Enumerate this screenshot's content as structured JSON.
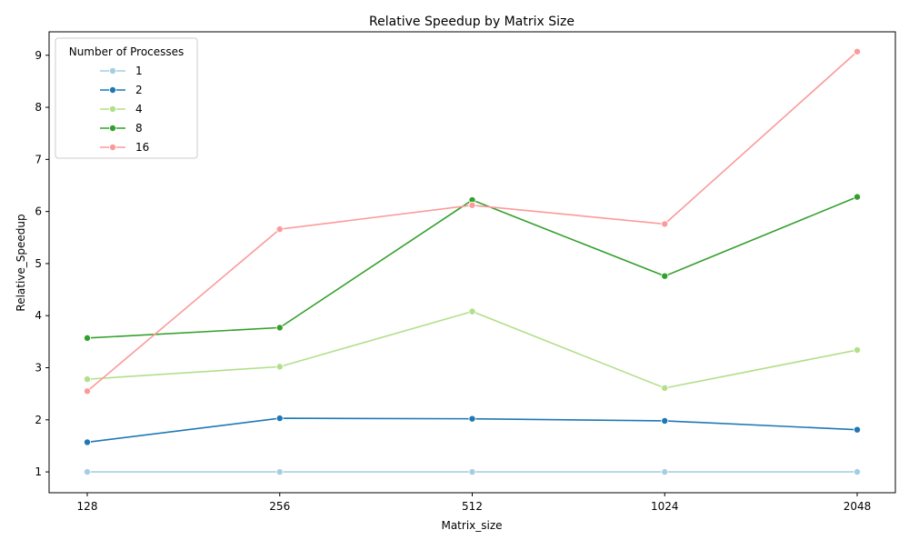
{
  "chart_data": {
    "type": "line",
    "title": "Relative Speedup by Matrix Size",
    "xlabel": "Matrix_size",
    "ylabel": "Relative_Speedup",
    "categories": [
      "128",
      "256",
      "512",
      "1024",
      "2048"
    ],
    "ylim": [
      0.6,
      9.45
    ],
    "yticks": [
      "1",
      "2",
      "3",
      "4",
      "5",
      "6",
      "7",
      "8",
      "9"
    ],
    "grid": false,
    "legend": {
      "title": "Number of Processes",
      "placement": "top-left"
    },
    "series": [
      {
        "name": "1",
        "color": "#a6cee3",
        "values": [
          1.0,
          1.0,
          1.0,
          1.0,
          1.0
        ]
      },
      {
        "name": "2",
        "color": "#1f78b4",
        "values": [
          1.57,
          2.03,
          2.02,
          1.98,
          1.81
        ]
      },
      {
        "name": "4",
        "color": "#b2df8a",
        "values": [
          2.78,
          3.02,
          4.08,
          2.61,
          3.34
        ]
      },
      {
        "name": "8",
        "color": "#33a02c",
        "values": [
          3.57,
          3.77,
          6.22,
          4.76,
          6.28
        ]
      },
      {
        "name": "16",
        "color": "#fb9a99",
        "values": [
          2.55,
          5.66,
          6.12,
          5.76,
          9.07
        ]
      }
    ]
  }
}
